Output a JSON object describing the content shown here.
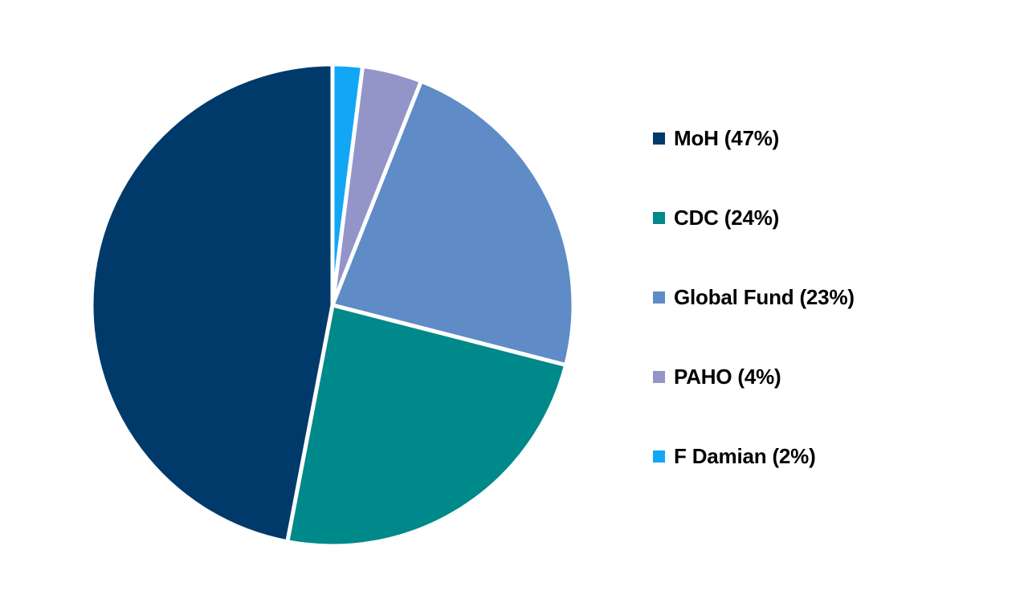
{
  "chart_data": {
    "type": "pie",
    "title": "",
    "legend_position": "right",
    "slices": [
      {
        "label": "MoH (47%)",
        "value": 47,
        "color": "#003a6b"
      },
      {
        "label": "CDC (24%)",
        "value": 24,
        "color": "#00898a"
      },
      {
        "label": "Global Fund (23%)",
        "value": 23,
        "color": "#5f8bc7"
      },
      {
        "label": "PAHO (4%)",
        "value": 4,
        "color": "#9394c8"
      },
      {
        "label": "F Damian (2%)",
        "value": 2,
        "color": "#12a7f5"
      }
    ],
    "draw_order": [
      4,
      3,
      2,
      1,
      0
    ]
  }
}
